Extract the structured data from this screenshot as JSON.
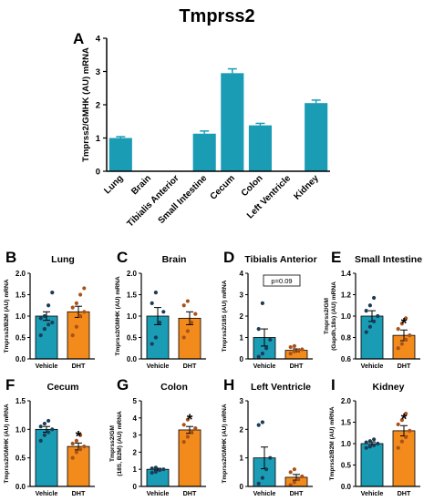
{
  "figure": {
    "title": "Tmprss2",
    "colors": {
      "teal": "#1a9cb5",
      "orange": "#f28a1c",
      "axis": "#000000"
    }
  },
  "chart_data": [
    {
      "id": "A",
      "type": "bar",
      "letter": "A",
      "title": "",
      "ylabel": "Tmprss2/GMHK (AU) mRNA",
      "ylim": [
        0,
        4
      ],
      "yticks": [
        0,
        1,
        2,
        3,
        4
      ],
      "categories": [
        "Lung",
        "Brain",
        "Tibialis Anterior",
        "Small Intestine",
        "Cecum",
        "Colon",
        "Left Ventricle",
        "Kidney"
      ],
      "values": [
        1.0,
        0,
        0,
        1.13,
        2.95,
        1.38,
        0,
        2.05
      ],
      "errors": [
        0.04,
        0,
        0,
        0.08,
        0.13,
        0.06,
        0,
        0.09
      ]
    },
    {
      "id": "B",
      "type": "bar",
      "letter": "B",
      "title": "Lung",
      "ylabel": "Tmprss2/B2M (AU) mRNA",
      "ylim": [
        0,
        2.0
      ],
      "yticks": [
        0.0,
        0.5,
        1.0,
        1.5,
        2.0
      ],
      "categories": [
        "Vehicle",
        "DHT"
      ],
      "values": [
        1.0,
        1.1
      ],
      "errors": [
        0.1,
        0.13
      ],
      "points": [
        [
          0.55,
          0.7,
          0.8,
          0.85,
          0.95,
          1.0,
          1.25,
          1.55
        ],
        [
          0.55,
          0.75,
          1.0,
          1.1,
          1.2,
          1.3,
          1.5,
          1.65
        ]
      ],
      "significance": "",
      "pvalue": ""
    },
    {
      "id": "C",
      "type": "bar",
      "letter": "C",
      "title": "Brain",
      "ylabel": "Tmprss2/GMHK (AU) mRNA",
      "ylim": [
        0,
        2.0
      ],
      "yticks": [
        0.0,
        0.5,
        1.0,
        1.5,
        2.0
      ],
      "categories": [
        "Vehicle",
        "DHT"
      ],
      "values": [
        1.0,
        0.95
      ],
      "errors": [
        0.2,
        0.15
      ],
      "points": [
        [
          0.35,
          0.5,
          0.85,
          1.1,
          1.3,
          1.55
        ],
        [
          0.5,
          0.65,
          0.85,
          1.05,
          1.25,
          1.35
        ]
      ],
      "significance": "",
      "pvalue": ""
    },
    {
      "id": "D",
      "type": "bar",
      "letter": "D",
      "title": "Tibialis Anterior",
      "ylabel": "Tmprss2/18S (AU) mRNA",
      "ylim": [
        0,
        4
      ],
      "yticks": [
        0,
        1,
        2,
        3,
        4
      ],
      "categories": [
        "Vehicle",
        "DHT"
      ],
      "values": [
        1.0,
        0.4
      ],
      "errors": [
        0.4,
        0.07
      ],
      "points": [
        [
          0.1,
          0.25,
          0.5,
          0.9,
          1.4,
          2.6
        ],
        [
          0.25,
          0.35,
          0.4,
          0.45,
          0.55,
          0.6
        ]
      ],
      "significance": "",
      "pvalue": "p=0.09"
    },
    {
      "id": "E",
      "type": "bar",
      "letter": "E",
      "title": "Small Intestine",
      "ylabel": "Tmprss2/GM (Gapdh,18s) (AU) mRNA",
      "ylim": [
        0.6,
        1.4
      ],
      "yticks": [
        0.6,
        0.8,
        1.0,
        1.2,
        1.4
      ],
      "categories": [
        "Vehicle",
        "DHT"
      ],
      "values": [
        1.0,
        0.82
      ],
      "errors": [
        0.05,
        0.05
      ],
      "points": [
        [
          0.85,
          0.9,
          0.95,
          1.0,
          1.05,
          1.1,
          1.17
        ],
        [
          0.7,
          0.74,
          0.78,
          0.82,
          0.88,
          0.93,
          0.98
        ]
      ],
      "significance": "*",
      "pvalue": ""
    },
    {
      "id": "F",
      "type": "bar",
      "letter": "F",
      "title": "Cecum",
      "ylabel": "Tmprss2/GMHK (AU) mRNA",
      "ylim": [
        0,
        1.5
      ],
      "yticks": [
        0.0,
        0.5,
        1.0,
        1.5
      ],
      "categories": [
        "Vehicle",
        "DHT"
      ],
      "values": [
        1.0,
        0.7
      ],
      "errors": [
        0.05,
        0.06
      ],
      "points": [
        [
          0.8,
          0.9,
          0.95,
          1.0,
          1.05,
          1.1,
          1.15
        ],
        [
          0.5,
          0.6,
          0.65,
          0.7,
          0.75,
          0.8,
          0.9
        ]
      ],
      "significance": "*",
      "pvalue": ""
    },
    {
      "id": "G",
      "type": "bar",
      "letter": "G",
      "title": "Colon",
      "ylabel": "Tmprss2/GM (18S, B2M) (AU) mRNA",
      "ylim": [
        0,
        5
      ],
      "yticks": [
        0,
        1,
        2,
        3,
        4,
        5
      ],
      "categories": [
        "Vehicle",
        "DHT"
      ],
      "values": [
        1.0,
        3.3
      ],
      "errors": [
        0.06,
        0.2
      ],
      "points": [
        [
          0.8,
          0.85,
          0.95,
          1.0,
          1.05,
          1.1
        ],
        [
          2.6,
          2.9,
          3.2,
          3.4,
          3.6,
          3.9
        ]
      ],
      "significance": "*",
      "pvalue": ""
    },
    {
      "id": "H",
      "type": "bar",
      "letter": "H",
      "title": "Left Ventricle",
      "ylabel": "Tmprss2/GMHK (AU) mRNA",
      "ylim": [
        0,
        3
      ],
      "yticks": [
        0,
        1,
        2,
        3
      ],
      "categories": [
        "Vehicle",
        "DHT"
      ],
      "values": [
        1.0,
        0.32
      ],
      "errors": [
        0.38,
        0.1
      ],
      "points": [
        [
          0.1,
          0.3,
          0.6,
          1.0,
          2.15,
          2.25
        ],
        [
          0.05,
          0.15,
          0.25,
          0.35,
          0.5,
          0.6
        ]
      ],
      "significance": "",
      "pvalue": ""
    },
    {
      "id": "I",
      "type": "bar",
      "letter": "I",
      "title": "Kidney",
      "ylabel": "Tmprss2/B2M (AU) mRNA",
      "ylim": [
        0,
        2.0
      ],
      "yticks": [
        0.0,
        0.5,
        1.0,
        1.5,
        2.0
      ],
      "categories": [
        "Vehicle",
        "DHT"
      ],
      "values": [
        1.0,
        1.3
      ],
      "errors": [
        0.04,
        0.12
      ],
      "points": [
        [
          0.9,
          0.93,
          0.96,
          1.0,
          1.03,
          1.06,
          1.1
        ],
        [
          0.9,
          1.05,
          1.15,
          1.3,
          1.45,
          1.55,
          1.7
        ]
      ],
      "significance": "*",
      "pvalue": ""
    }
  ]
}
